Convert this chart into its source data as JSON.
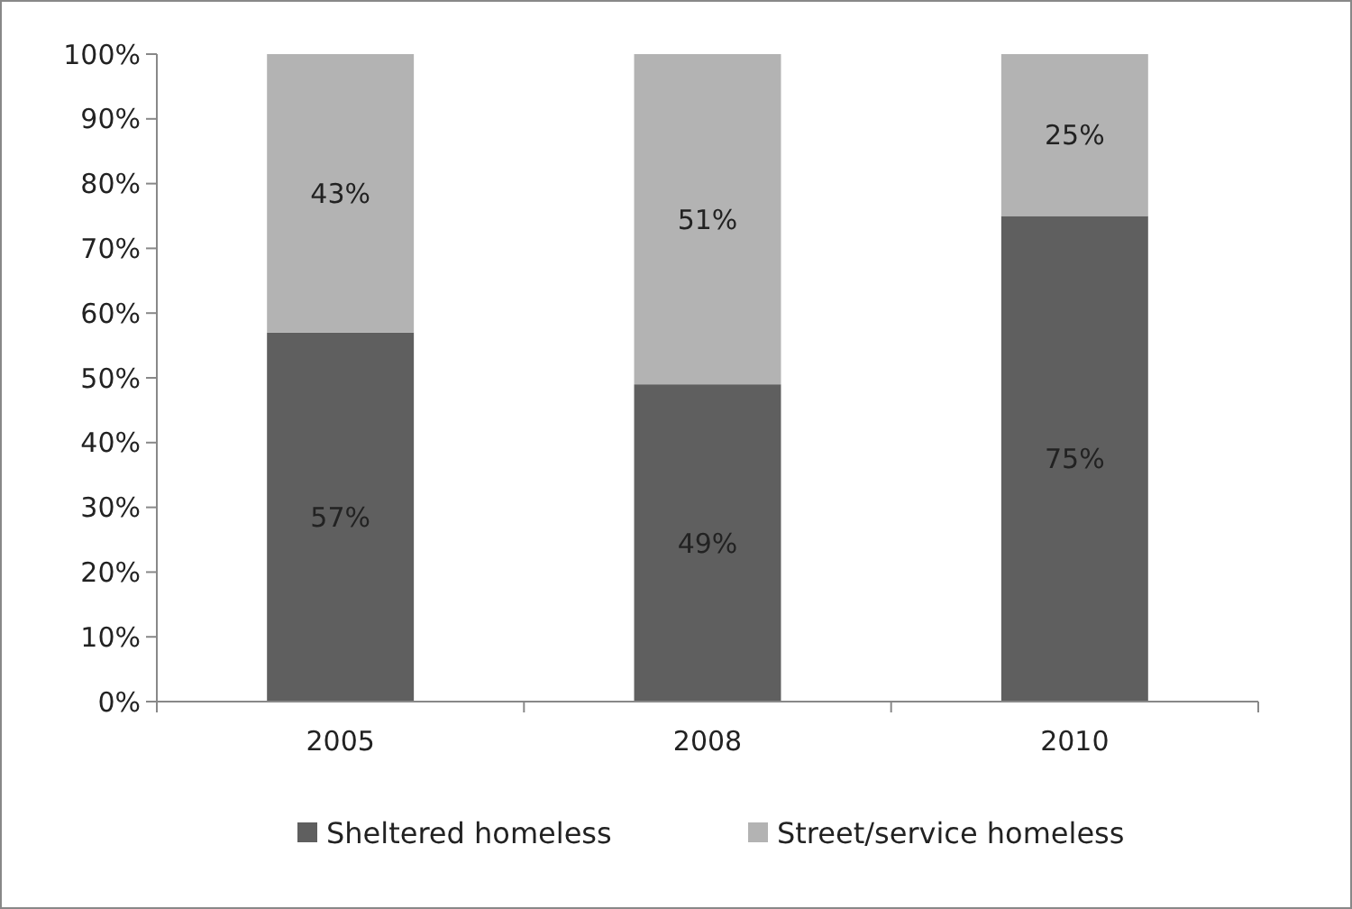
{
  "chart_data": {
    "type": "bar",
    "stacked": true,
    "categories": [
      "2005",
      "2008",
      "2010"
    ],
    "series": [
      {
        "name": "Sheltered homeless",
        "color": "#5f5f5f",
        "values": [
          57,
          49,
          75
        ],
        "value_labels": [
          "57%",
          "49%",
          "75%"
        ]
      },
      {
        "name": "Street/service homeless",
        "color": "#b3b3b3",
        "values": [
          43,
          51,
          25
        ],
        "value_labels": [
          "43%",
          "51%",
          "25%"
        ]
      }
    ],
    "ylim": [
      0,
      100
    ],
    "yticks": [
      {
        "value": 0,
        "label": "0%"
      },
      {
        "value": 10,
        "label": "10%"
      },
      {
        "value": 20,
        "label": "20%"
      },
      {
        "value": 30,
        "label": "30%"
      },
      {
        "value": 40,
        "label": "40%"
      },
      {
        "value": 50,
        "label": "50%"
      },
      {
        "value": 60,
        "label": "60%"
      },
      {
        "value": 70,
        "label": "70%"
      },
      {
        "value": 80,
        "label": "80%"
      },
      {
        "value": 90,
        "label": "90%"
      },
      {
        "value": 100,
        "label": "100%"
      }
    ],
    "grid": false,
    "legend": "bottom"
  }
}
